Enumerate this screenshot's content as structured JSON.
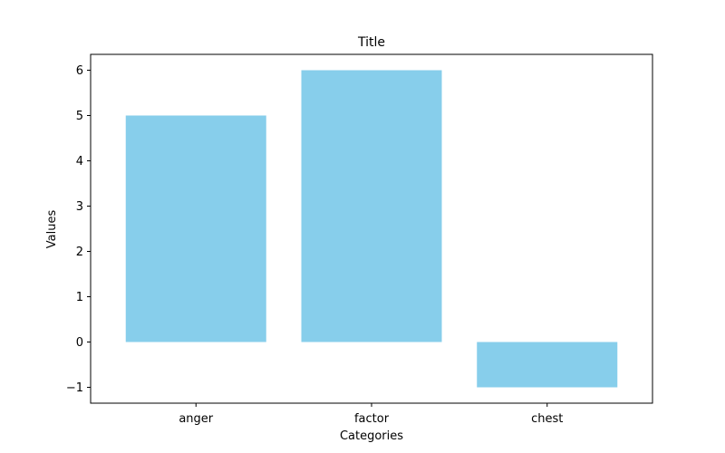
{
  "chart_data": {
    "type": "bar",
    "title": "Title",
    "xlabel": "Categories",
    "ylabel": "Values",
    "categories": [
      "anger",
      "factor",
      "chest"
    ],
    "values": [
      5,
      6,
      -1
    ],
    "ylim": [
      -1.35,
      6.35
    ],
    "yticks": [
      -1,
      0,
      1,
      2,
      3,
      4,
      5,
      6
    ],
    "ytick_labels": [
      "−1",
      "0",
      "1",
      "2",
      "3",
      "4",
      "5",
      "6"
    ],
    "bar_color": "#87CEEB",
    "grid": false,
    "legend": "none"
  }
}
